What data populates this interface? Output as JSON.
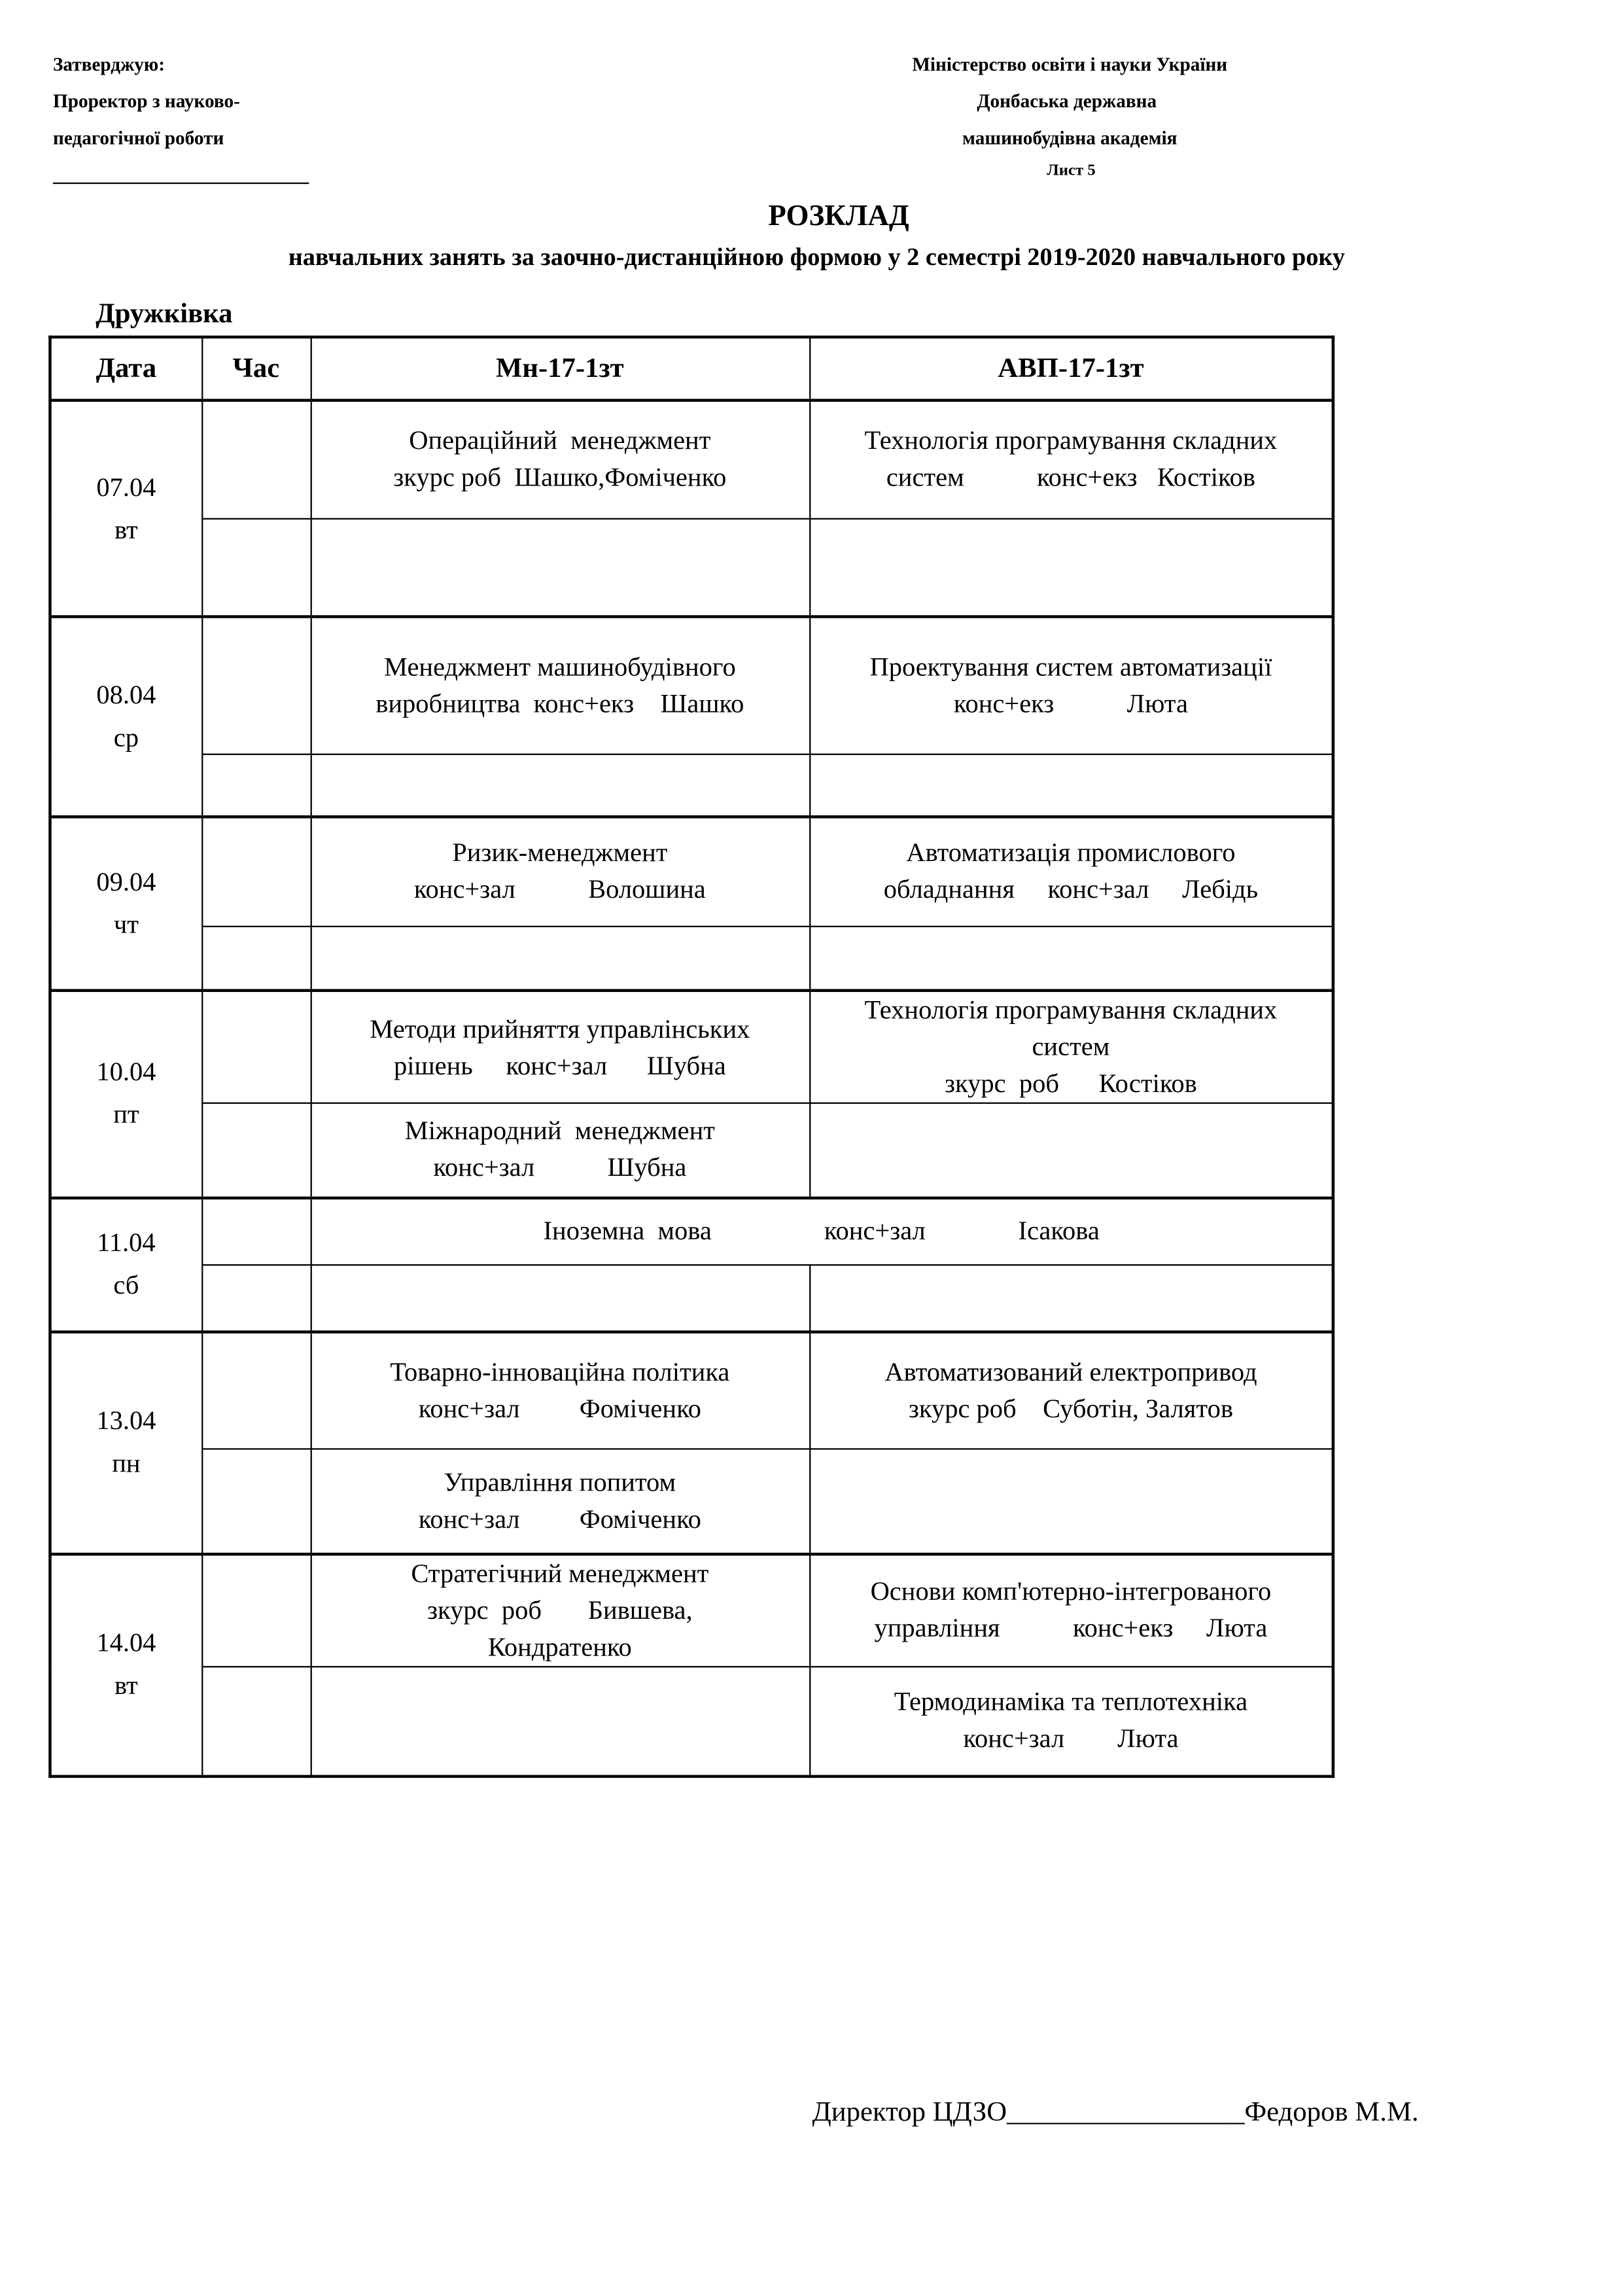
{
  "header_left": {
    "approve": "Затверджую:",
    "line1": "Проректор з науково-",
    "line2": "педагогічної роботи"
  },
  "header_right": {
    "line1": "Міністерство освіти і науки України",
    "line2": "Донбаська державна",
    "line3": "машинобудівна академія",
    "sheet": "Лист 5"
  },
  "title": "РОЗКЛАД",
  "subtitle": "навчальних занять за заочно-дистанційною формою  у  2 семестрі 2019-2020 навчального року",
  "city": "Дружківка",
  "table": {
    "headers": [
      "Дата",
      "Час",
      "Мн-17-1зт",
      "АВП-17-1зт"
    ],
    "days": [
      {
        "date": "07.04",
        "weekday": "вт",
        "rows": [
          {
            "mn": "Операційний  менеджмент\nзкурс роб  Шашко,Фоміченко",
            "avp": "Технологія програмування складних\nсистем           конс+екз   Костіков"
          },
          {
            "mn": "",
            "avp": ""
          }
        ]
      },
      {
        "date": "08.04",
        "weekday": "ср",
        "rows": [
          {
            "mn": "Менеджмент машинобудівного\nвиробництва  конс+екз    Шашко",
            "avp": "Проектування систем автоматизації\nконс+екз           Люта"
          },
          {
            "mn": "",
            "avp": ""
          }
        ]
      },
      {
        "date": "09.04",
        "weekday": "чт",
        "rows": [
          {
            "mn": "Ризик-менеджмент\nконс+зал           Волошина",
            "avp": "Автоматизація промислового\nобладнання     конс+зал     Лебідь"
          },
          {
            "mn": "",
            "avp": ""
          }
        ]
      },
      {
        "date": "10.04",
        "weekday": "пт",
        "rows": [
          {
            "mn": "Методи прийняття управлінських\nрішень     конс+зал      Шубна",
            "avp": "Технологія програмування складних\nсистем\nзкурс  роб      Костіков"
          },
          {
            "mn": "Міжнародний  менеджмент\nконс+зал           Шубна",
            "avp": ""
          }
        ]
      },
      {
        "date": "11.04",
        "weekday": "сб",
        "rows": [
          {
            "merged": "Іноземна  мова                 конс+зал              Ісакова"
          },
          {
            "mn": "",
            "avp": ""
          }
        ]
      },
      {
        "date": "13.04",
        "weekday": "пн",
        "rows": [
          {
            "mn": "Товарно-інноваційна політика\nконс+зал         Фоміченко",
            "avp": "Автоматизований електропривод\nзкурс роб    Суботін, Залятов"
          },
          {
            "mn": "Управління попитом\nконс+зал         Фоміченко",
            "avp": ""
          }
        ]
      },
      {
        "date": "14.04",
        "weekday": "вт",
        "rows": [
          {
            "mn": "Стратегічний менеджмент\nзкурс  роб       Бившева,\nКондратенко",
            "avp": "Основи комп'ютерно-інтегрованого\nуправління           конс+екз     Люта"
          },
          {
            "mn": "",
            "avp": "Термодинаміка та теплотехніка\nконс+зал        Люта"
          }
        ]
      }
    ]
  },
  "footer": "Директор ЦДЗО_________________Федоров М.М."
}
